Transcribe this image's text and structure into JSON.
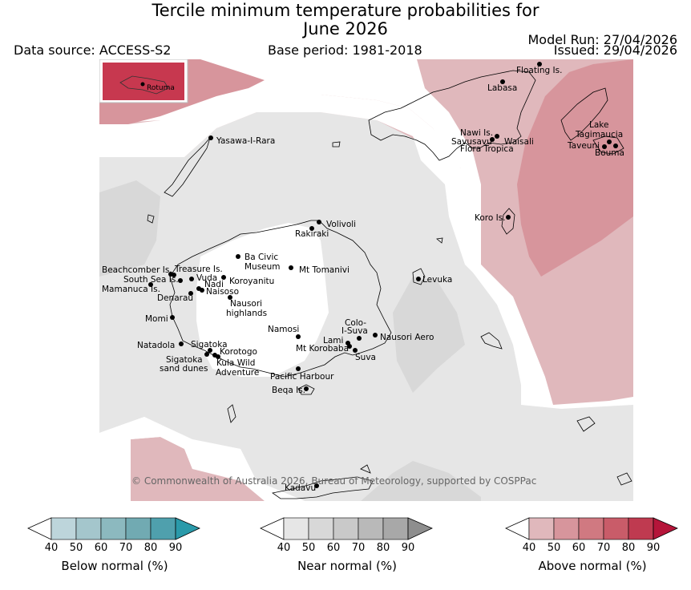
{
  "header": {
    "title_line1": "Tercile minimum temperature probabilities for",
    "title_line2": "June 2026",
    "data_source": "Data source: ACCESS-S2",
    "base_period": "Base period: 1981-2018",
    "model_run": "Model Run: 27/04/2026",
    "issued": "Issued: 29/04/2026"
  },
  "map": {
    "inset_label": "Rotuma",
    "copyright": "© Commonwealth of Australia 2026, Bureau of Meteorology, supported by COSPPac",
    "places": {
      "floating_is": "Floating Is.",
      "labasa": "Labasa",
      "nawi_is": "Nawi Is.",
      "savusavu": "Savusavu",
      "flora_tropica": "Flora Tropica",
      "waisali": "Waisali",
      "lake_tagimaucia_1": "Lake",
      "lake_tagimaucia_2": "Tagimaucia",
      "taveuni": "Taveuni",
      "bouma": "Bouma",
      "yasawa": "Yasawa-I-Rara",
      "koro": "Koro Is.",
      "volivoli": "Volivoli",
      "rakiraki": "Rakiraki",
      "ba_civic_1": "Ba Civic",
      "ba_civic_2": "Museum",
      "mt_tomanivi": "Mt Tomanivi",
      "beachcomber": "Beachcomber Is.",
      "treasure": "Treasure Is.",
      "south_sea": "South Sea Is.",
      "vuda": "Vuda",
      "koroyanitu": "Koroyanitu",
      "nadi": "Nadi",
      "mamanuca": "Mamanuca Is.",
      "naisoso": "Naisoso",
      "denarau": "Denarau",
      "nausori_high_1": "Nausori",
      "nausori_high_2": "highlands",
      "levuka": "Levuka",
      "momi": "Momi",
      "namosi": "Namosi",
      "colo_suva_1": "Colo-",
      "colo_suva_2": "I-Suva",
      "lami": "Lami",
      "nausori_aero": "Nausori Aero",
      "mt_korobaba": "Mt Korobaba",
      "suva": "Suva",
      "natadola": "Natadola",
      "sigatoka": "Sigatoka",
      "korotogo": "Korotogo",
      "sig_dunes_1": "Sigatoka",
      "sig_dunes_2": "sand dunes",
      "kula_1": "Kula Wild",
      "kula_2": "Adventure",
      "pacific_harbour": "Pacific Harbour",
      "beqa": "Beqa Is.",
      "kadavu": "Kadavu"
    }
  },
  "colorbars": [
    {
      "name": "below",
      "label": "Below normal (%)",
      "ticks": [
        "40",
        "50",
        "60",
        "70",
        "80",
        "90"
      ],
      "colors": [
        "#ffffff",
        "#bdd5db",
        "#a4c6cc",
        "#8cb9bf",
        "#71aab2",
        "#4fa0ad",
        "#2a9aaa"
      ]
    },
    {
      "name": "near",
      "label": "Near normal (%)",
      "ticks": [
        "40",
        "50",
        "60",
        "70",
        "80",
        "90"
      ],
      "colors": [
        "#ffffff",
        "#e6e6e6",
        "#d8d8d8",
        "#c9c9c9",
        "#b9b9b9",
        "#a8a8a8",
        "#8e8e8e"
      ]
    },
    {
      "name": "above",
      "label": "Above normal (%)",
      "ticks": [
        "40",
        "50",
        "60",
        "70",
        "80",
        "90"
      ],
      "colors": [
        "#ffffff",
        "#e0b8bc",
        "#d7959c",
        "#d07981",
        "#c95c69",
        "#bf3a50",
        "#b5153a"
      ]
    }
  ]
}
